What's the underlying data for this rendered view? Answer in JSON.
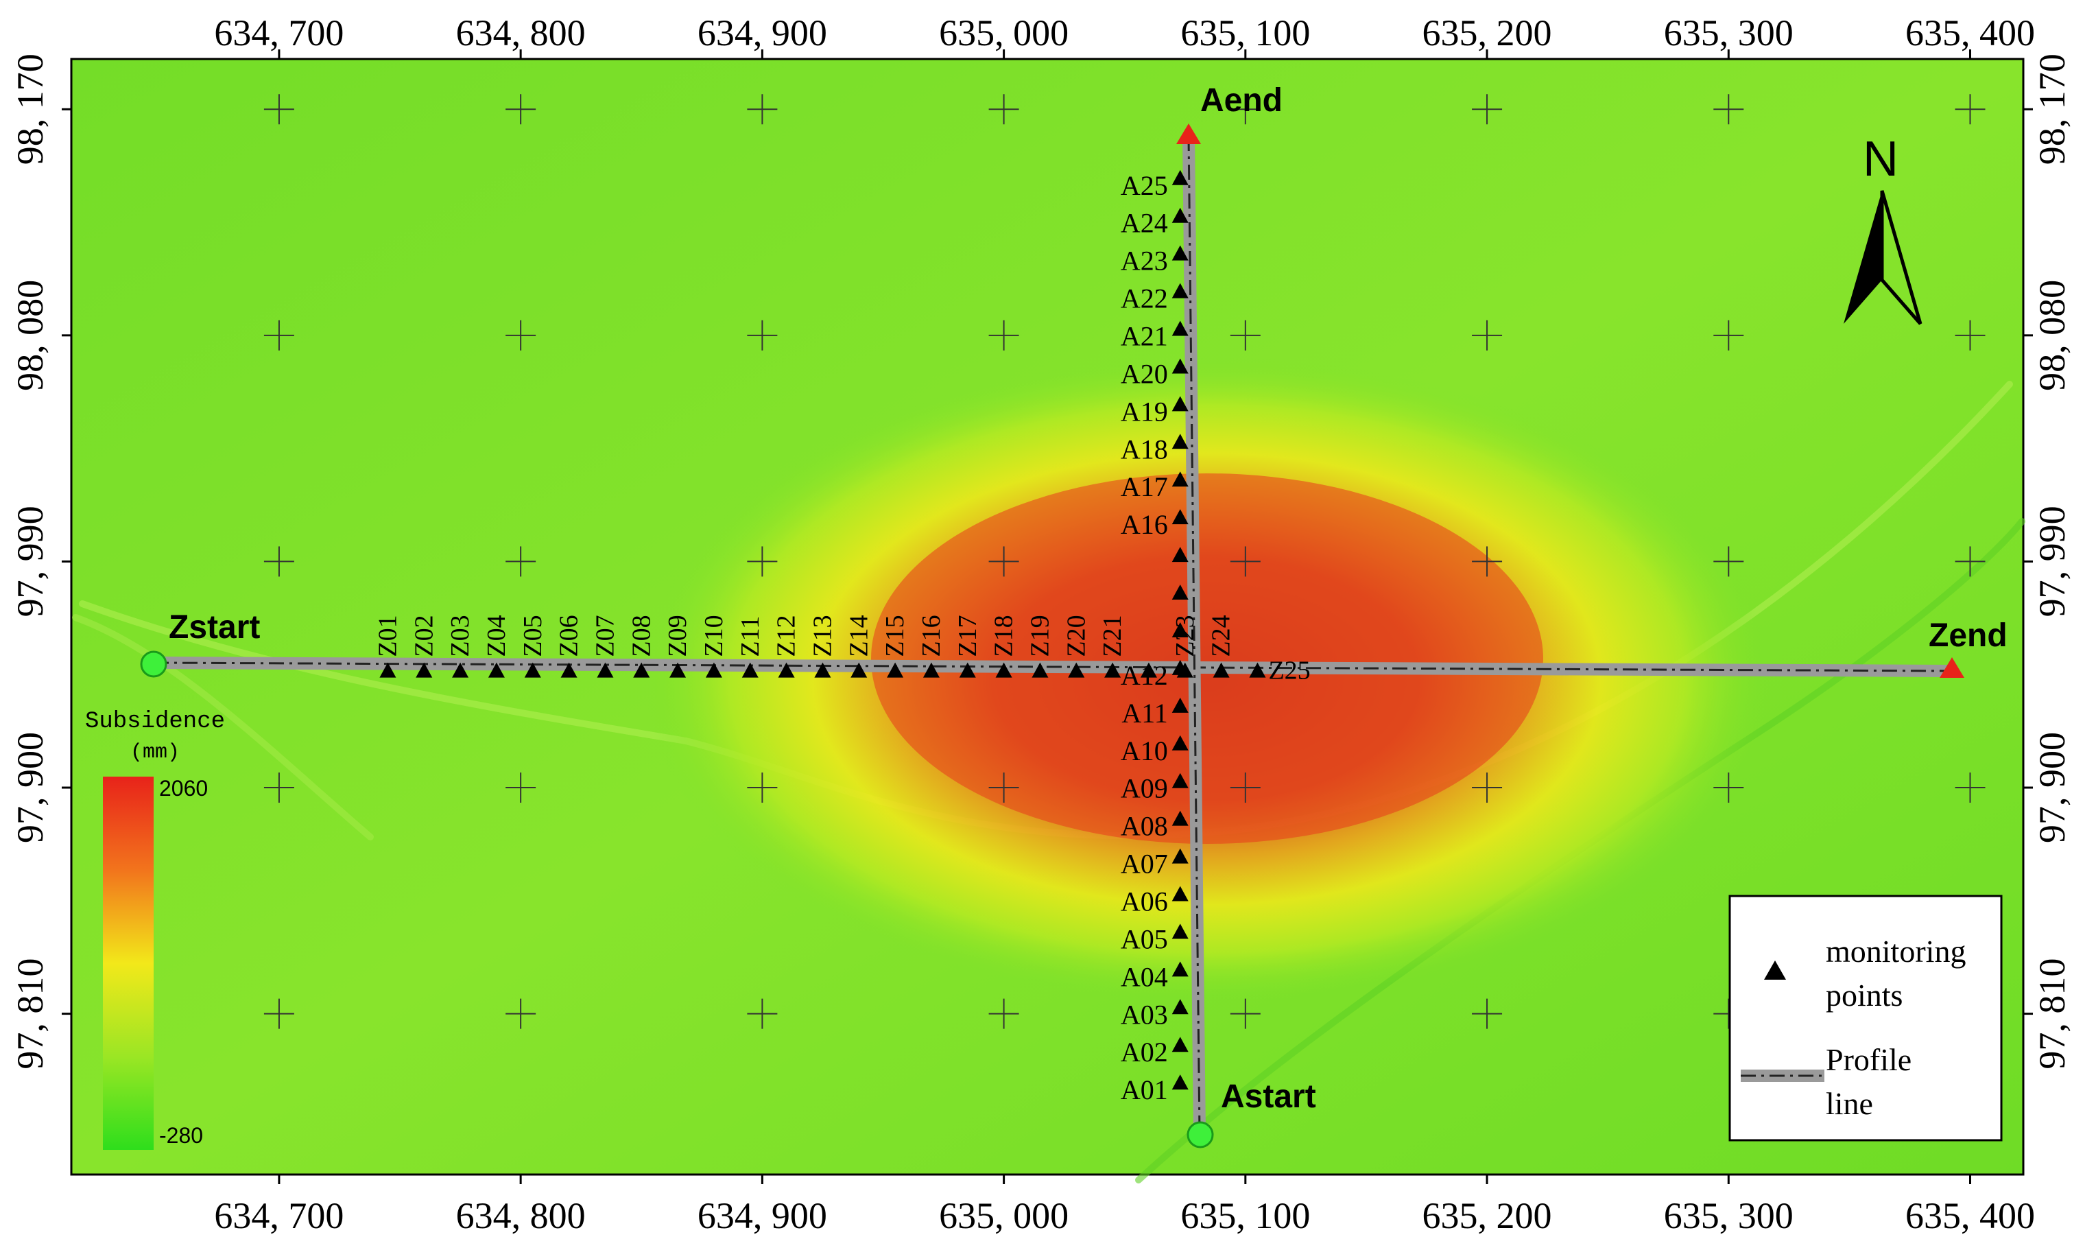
{
  "map": {
    "x_ticks": [
      "634, 700",
      "634, 800",
      "634, 900",
      "635, 000",
      "635, 100",
      "635, 200",
      "635, 300",
      "635, 400"
    ],
    "y_ticks": [
      "98, 170",
      "98, 080",
      "97, 990",
      "97, 900",
      "97, 810"
    ],
    "x_tick_values": [
      634700,
      634800,
      634900,
      635000,
      635100,
      635200,
      635300,
      635400
    ],
    "y_tick_values": [
      98170,
      98080,
      97990,
      97900,
      97810
    ],
    "x_range": [
      634614,
      635422
    ],
    "y_range": [
      97746,
      98190
    ],
    "colors": {
      "high": "#e8301e",
      "mid": "#f2e81a",
      "low": "#3ee01c",
      "background": "#7fe22a"
    }
  },
  "profile_lines": {
    "zstart": {
      "label": "Zstart",
      "x": 634653,
      "y": 97946
    },
    "zend": {
      "label": "Zend",
      "x": 635391,
      "y": 97944
    },
    "aend": {
      "label": "Aend",
      "x": 635085,
      "y": 98170
    },
    "astart": {
      "label": "Astart",
      "x": 635090,
      "y": 97765
    }
  },
  "monitoring_points": {
    "a_line": [
      {
        "label": "A01",
        "y": 97782
      },
      {
        "label": "A02",
        "y": 97797
      },
      {
        "label": "A03",
        "y": 97812
      },
      {
        "label": "A04",
        "y": 97827
      },
      {
        "label": "A05",
        "y": 97842
      },
      {
        "label": "A06",
        "y": 97857
      },
      {
        "label": "A07",
        "y": 97872
      },
      {
        "label": "A08",
        "y": 97887
      },
      {
        "label": "A09",
        "y": 97902
      },
      {
        "label": "A10",
        "y": 97917
      },
      {
        "label": "A11",
        "y": 97932
      },
      {
        "label": "A12",
        "y": 97947
      },
      {
        "label": "",
        "y": 97962
      },
      {
        "label": "",
        "y": 97977
      },
      {
        "label": "",
        "y": 97992
      },
      {
        "label": "A16",
        "y": 98007
      },
      {
        "label": "A17",
        "y": 98022
      },
      {
        "label": "A18",
        "y": 98037
      },
      {
        "label": "A19",
        "y": 98052
      },
      {
        "label": "A20",
        "y": 98067
      },
      {
        "label": "A21",
        "y": 98082
      },
      {
        "label": "A22",
        "y": 98097
      },
      {
        "label": "A23",
        "y": 98112
      },
      {
        "label": "A24",
        "y": 98127
      },
      {
        "label": "A25",
        "y": 98142
      }
    ],
    "a_line_x": 635073,
    "z_line": [
      {
        "label": "Z01",
        "x": 634745
      },
      {
        "label": "Z02",
        "x": 634760
      },
      {
        "label": "Z03",
        "x": 634775
      },
      {
        "label": "Z04",
        "x": 634790
      },
      {
        "label": "Z05",
        "x": 634805
      },
      {
        "label": "Z06",
        "x": 634820
      },
      {
        "label": "Z07",
        "x": 634835
      },
      {
        "label": "Z08",
        "x": 634850
      },
      {
        "label": "Z09",
        "x": 634865
      },
      {
        "label": "Z10",
        "x": 634880
      },
      {
        "label": "Z11",
        "x": 634895
      },
      {
        "label": "Z12",
        "x": 634910
      },
      {
        "label": "Z13",
        "x": 634925
      },
      {
        "label": "Z14",
        "x": 634940
      },
      {
        "label": "Z15",
        "x": 634955
      },
      {
        "label": "Z16",
        "x": 634970
      },
      {
        "label": "Z17",
        "x": 634985
      },
      {
        "label": "Z18",
        "x": 635000
      },
      {
        "label": "Z19",
        "x": 635015
      },
      {
        "label": "Z20",
        "x": 635030
      },
      {
        "label": "Z21",
        "x": 635045
      },
      {
        "label": "",
        "x": 635060
      },
      {
        "label": "Z23",
        "x": 635075
      },
      {
        "label": "Z24",
        "x": 635090
      },
      {
        "label": "Z25",
        "x": 635105
      }
    ],
    "z_line_y": 97946
  },
  "north_arrow": {
    "label": "N"
  },
  "colorbar": {
    "title": "Subsidence",
    "unit": "(mm)",
    "max_label": "2060",
    "min_label": "-280",
    "max": 2060,
    "min": -280
  },
  "legend": {
    "items": [
      {
        "label_line1": "monitoring",
        "label_line2": "points"
      },
      {
        "label_line1": "Profile",
        "label_line2": "line"
      }
    ]
  }
}
